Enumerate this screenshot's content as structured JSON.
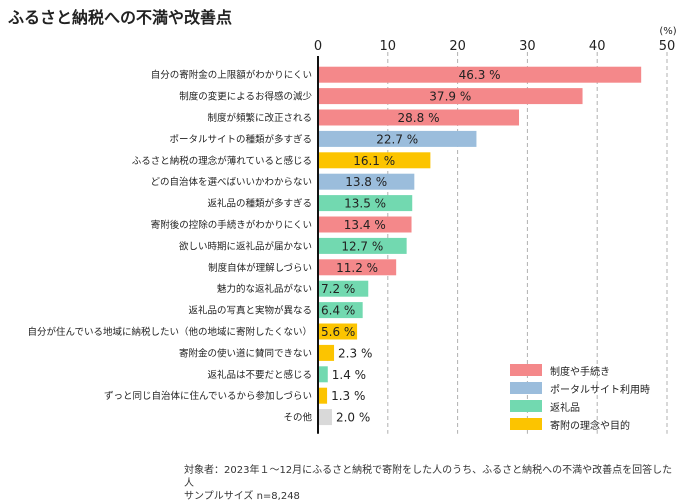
{
  "chart_data": {
    "type": "bar",
    "orientation": "horizontal",
    "title": "ふるさと納税への不満や改善点",
    "unit_label": "(%)",
    "xlim": [
      0,
      50
    ],
    "ticks": [
      0,
      10,
      20,
      30,
      40,
      50
    ],
    "grid": true,
    "legend_position": "bottom-right",
    "categories": [
      "自分の寄附金の上限額がわかりにくい",
      "制度の変更によるお得感の減少",
      "制度が頻繁に改正される",
      "ポータルサイトの種類が多すぎる",
      "ふるさと納税の理念が薄れていると感じる",
      "どの自治体を選べばいいかわからない",
      "返礼品の種類が多すぎる",
      "寄附後の控除の手続きがわかりにくい",
      "欲しい時期に返礼品が届かない",
      "制度自体が理解しづらい",
      "魅力的な返礼品がない",
      "返礼品の写真と実物が異なる",
      "自分が住んでいる地域に納税したい（他の地域に寄附したくない）",
      "寄附金の使い道に賛同できない",
      "返礼品は不要だと感じる",
      "ずっと同じ自治体に住んでいるから参加しづらい",
      "その他"
    ],
    "values": [
      46.3,
      37.9,
      28.8,
      22.7,
      16.1,
      13.8,
      13.5,
      13.4,
      12.7,
      11.2,
      7.2,
      6.4,
      5.6,
      2.3,
      1.4,
      1.3,
      2.0
    ],
    "value_labels": [
      "46.3 %",
      "37.9 %",
      "28.8 %",
      "22.7 %",
      "16.1 %",
      "13.8 %",
      "13.5 %",
      "13.4 %",
      "12.7 %",
      "11.2 %",
      "7.2 %",
      "6.4 %",
      "5.6 %",
      "2.3 %",
      "1.4 %",
      "1.3 %",
      "2.0 %"
    ],
    "groups": [
      "system",
      "system",
      "system",
      "portal",
      "ideal",
      "portal",
      "gift",
      "system",
      "gift",
      "system",
      "gift",
      "gift",
      "ideal",
      "ideal",
      "gift",
      "ideal",
      "other"
    ],
    "legend": [
      {
        "key": "system",
        "label": "制度や手続き",
        "color": "#f4888a"
      },
      {
        "key": "portal",
        "label": "ポータルサイト利用時",
        "color": "#9bbddc"
      },
      {
        "key": "gift",
        "label": "返礼品",
        "color": "#72d9b0"
      },
      {
        "key": "ideal",
        "label": "寄附の理念や目的",
        "color": "#fcc400"
      }
    ],
    "colors": {
      "system": "#f4888a",
      "portal": "#9bbddc",
      "gift": "#72d9b0",
      "ideal": "#fcc400",
      "other": "#d9d9d9"
    },
    "notes": [
      "対象者：2023年１～12月にふるさと納税で寄附をした人のうち、ふるさと納税への不満や改善点を回答した人",
      "サンプルサイズ n=8,248"
    ]
  }
}
